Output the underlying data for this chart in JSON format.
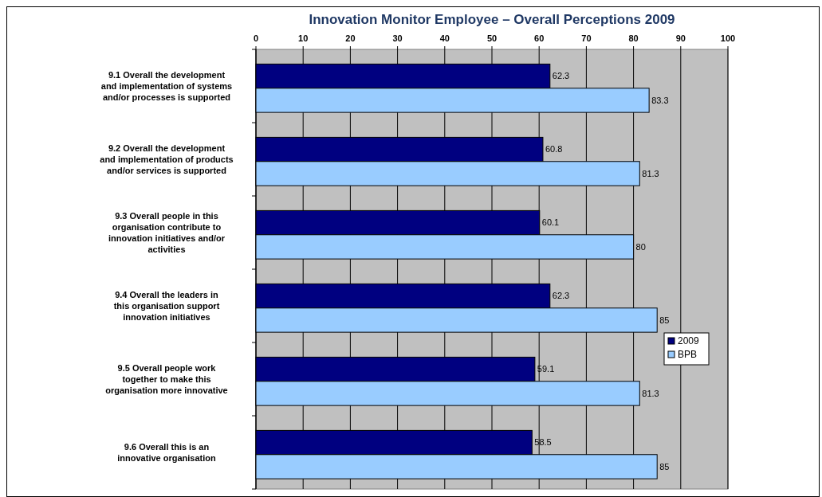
{
  "chart_data": {
    "type": "bar",
    "orientation": "horizontal",
    "title": "Innovation Monitor Employee – Overall Perceptions 2009",
    "categories": [
      "9.1 Overall the development and implementation of systems and/or processes is supported",
      "9.2 Overall the development and implementation of products and/or services is supported",
      "9.3 Overall people in this organisation contribute to innovation initiatives and/or activities",
      "9.4 Overall the leaders in this organisation support innovation initiatives",
      "9.5 Overall people work together to make this organisation more innovative",
      "9.6 Overall this is an innovative organisation"
    ],
    "series": [
      {
        "name": "2009",
        "color": "#000080",
        "values": [
          62.3,
          60.8,
          60.1,
          62.3,
          59.1,
          58.5
        ]
      },
      {
        "name": "BPB",
        "color": "#99ccff",
        "values": [
          83.3,
          81.3,
          80,
          85,
          81.3,
          85
        ]
      }
    ],
    "xlim": [
      0,
      100
    ],
    "xticks": [
      0,
      10,
      20,
      30,
      40,
      50,
      60,
      70,
      80,
      90,
      100
    ],
    "grid": "x",
    "legend": "right",
    "data_labels": true
  }
}
